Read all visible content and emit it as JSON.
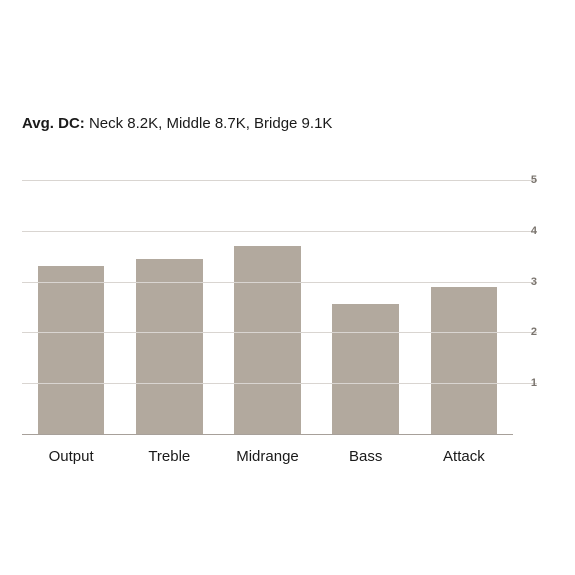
{
  "header": {
    "label": "Avg. DC:",
    "value": " Neck 8.2K, Middle 8.7K, Bridge 9.1K"
  },
  "chart": {
    "type": "bar",
    "categories": [
      "Output",
      "Treble",
      "Midrange",
      "Bass",
      "Attack"
    ],
    "values": [
      3.3,
      3.45,
      3.7,
      2.55,
      2.9
    ],
    "bar_color": "#b2a99e",
    "grid_color": "#d9d5d1",
    "axis_color": "#a7a09a",
    "background_color": "#ffffff",
    "ylim": [
      0,
      5
    ],
    "yticks": [
      1,
      2,
      3,
      4,
      5
    ],
    "ytick_labels": [
      "1",
      "2",
      "3",
      "4",
      "5"
    ],
    "ytick_color": "#7a746e",
    "ytick_fontsize": 11,
    "xlabel_fontsize": 15,
    "xlabel_color": "#1a1a1a",
    "bar_width_ratio": 0.68
  }
}
